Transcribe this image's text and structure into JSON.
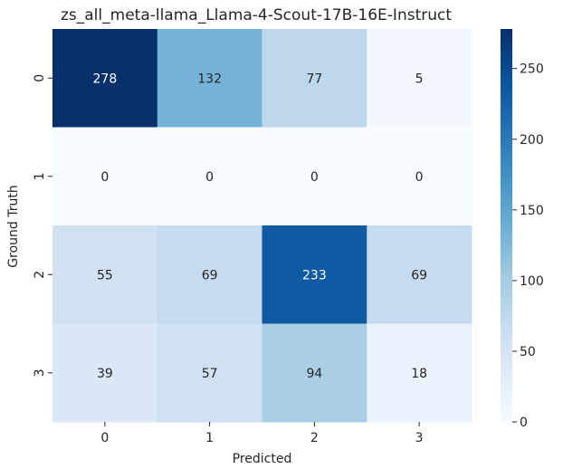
{
  "chart_data": {
    "type": "heatmap",
    "title": "zs_all_meta-llama_Llama-4-Scout-17B-16E-Instruct",
    "xlabel": "Predicted",
    "ylabel": "Ground Truth",
    "x_categories": [
      "0",
      "1",
      "2",
      "3"
    ],
    "y_categories": [
      "0",
      "1",
      "2",
      "3"
    ],
    "values": [
      [
        278,
        132,
        77,
        5
      ],
      [
        0,
        0,
        0,
        0
      ],
      [
        55,
        69,
        233,
        69
      ],
      [
        39,
        57,
        94,
        18
      ]
    ],
    "colormap": "Blues",
    "vmin": 0,
    "vmax": 278,
    "colorbar_ticks": [
      "0",
      "50",
      "100",
      "150",
      "200",
      "250"
    ],
    "colors": {
      "low": "#f7fbff",
      "high": "#08306b",
      "text_dark": "#262626",
      "text_light": "#ffffff"
    }
  }
}
